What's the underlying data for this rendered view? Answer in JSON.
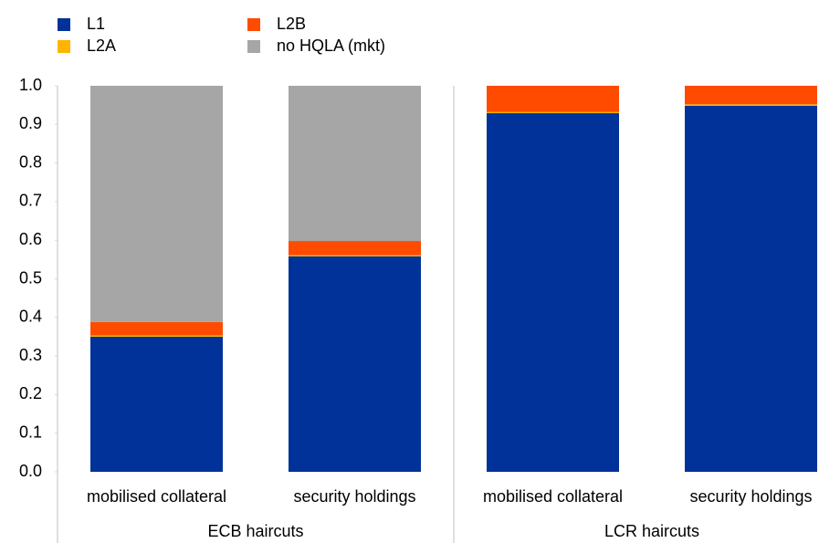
{
  "chart_data": {
    "type": "stacked_bar",
    "groups": [
      {
        "label": "ECB haircuts",
        "categories": [
          "mobilised collateral",
          "security holdings"
        ]
      },
      {
        "label": "LCR haircuts",
        "categories": [
          "mobilised collateral",
          "security holdings"
        ]
      }
    ],
    "series": [
      {
        "name": "L1",
        "color": "#003299",
        "values": [
          0.35,
          0.558,
          0.929,
          0.948
        ]
      },
      {
        "name": "L2A",
        "color": "#ffb400",
        "values": [
          0.003,
          0.003,
          0.003,
          0.004
        ]
      },
      {
        "name": "L2B",
        "color": "#ff4b00",
        "values": [
          0.035,
          0.037,
          0.068,
          0.048
        ]
      },
      {
        "name": "no HQLA (mkt)",
        "color": "#a6a6a6",
        "values": [
          0.612,
          0.402,
          0,
          0
        ]
      }
    ],
    "ylim": [
      0,
      1
    ],
    "yticks": [
      {
        "value": 0,
        "label": "0.0"
      },
      0.1,
      0.2,
      0.3,
      0.4,
      0.5,
      0.6,
      0.7,
      0.8,
      0.9,
      {
        "value": 1,
        "label": "1.0"
      }
    ],
    "grid": false
  }
}
